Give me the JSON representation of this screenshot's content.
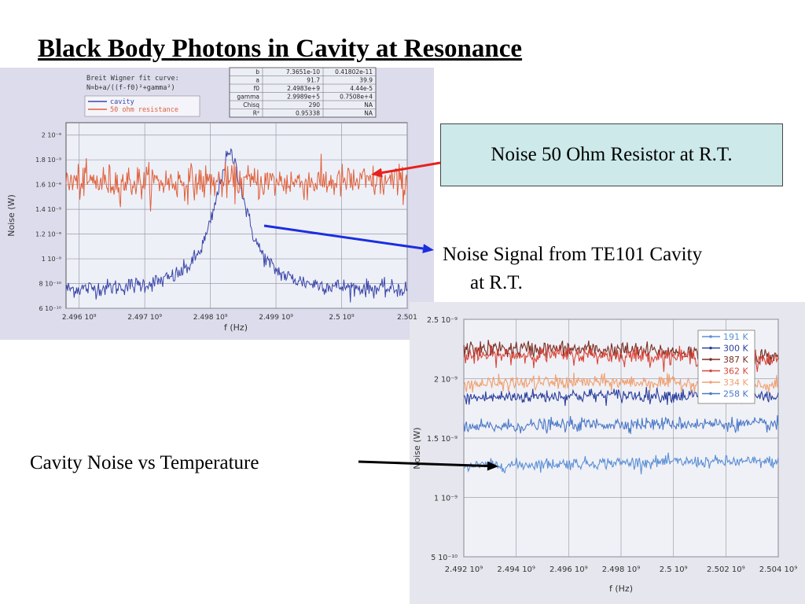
{
  "slide": {
    "title": "Black Body Photons in Cavity at Resonance",
    "callout_resistor": "Noise 50 Ohm Resistor at R.T.",
    "callout_cavity_line1": "Noise Signal from TE101 Cavity",
    "callout_cavity_line2": "at R.T.",
    "callout_temperature": "Cavity Noise vs Temperature"
  },
  "colors": {
    "red_arrow": "#e8201c",
    "blue_arrow": "#1a2ee0",
    "black_arrow": "#000000",
    "callout_bg": "#cde9e9"
  },
  "chart_data": [
    {
      "type": "line",
      "fit_note_line1": "Breit Wigner fit curve:",
      "fit_note_line2": "N=b+a/((f-f0)²+gamma²)",
      "xlabel": "f (Hz)",
      "ylabel": "Noise (W)",
      "xlim": [
        2495800000.0,
        2501000000.0
      ],
      "ylim": [
        6e-10,
        2.1e-09
      ],
      "x_ticks": [
        2496000000.0,
        2497000000.0,
        2498000000.0,
        2499000000.0,
        2500000000.0,
        2501000000.0
      ],
      "x_tick_labels": [
        "2.496 10⁹",
        "2.497 10⁹",
        "2.498 10⁹",
        "2.499 10⁹",
        "2.5 10⁹",
        "2.501"
      ],
      "y_ticks": [
        6e-10,
        8e-10,
        1e-09,
        1.2e-09,
        1.4e-09,
        1.6e-09,
        1.8e-09,
        2e-09
      ],
      "y_tick_labels": [
        "6 10⁻¹⁰",
        "8 10⁻¹⁰",
        "1 10⁻⁹",
        "1.2 10⁻⁹",
        "1.4 10⁻⁹",
        "1.6 10⁻⁹",
        "1.8 10⁻⁹",
        "2 10⁻⁹"
      ],
      "grid": true,
      "legend_position": "top-left",
      "series": [
        {
          "name": "cavity",
          "color": "#3a46a8",
          "model": "breit-wigner",
          "baseline": 7.4e-10,
          "peak": 1.84e-09,
          "center": 2498300000.0,
          "gamma": 299900.0,
          "noise": 3.5e-11
        },
        {
          "name": "50 ohm resistance",
          "color": "#e0603a",
          "model": "flat",
          "baseline": 1.62e-09,
          "noise": 7e-11
        }
      ],
      "fit_table": {
        "headers": [
          "",
          "",
          ""
        ],
        "rows": [
          [
            "b",
            "7.3651e-10",
            "0.41802e-11"
          ],
          [
            "a",
            "91.7",
            "39.9"
          ],
          [
            "f0",
            "2.4983e+9",
            "4.44e-5"
          ],
          [
            "gamma",
            "2.9989e+5",
            "0.7508e+4"
          ],
          [
            "Chisq",
            "290",
            "NA"
          ],
          [
            "R²",
            "0.95338",
            "NA"
          ]
        ]
      }
    },
    {
      "type": "line",
      "xlabel": "f (Hz)",
      "ylabel": "Noise (W)",
      "xlim": [
        2492000000.0,
        2504000000.0
      ],
      "ylim": [
        5e-10,
        2.5e-09
      ],
      "x_ticks": [
        2492000000.0,
        2494000000.0,
        2496000000.0,
        2498000000.0,
        2500000000.0,
        2502000000.0,
        2504000000.0
      ],
      "x_tick_labels": [
        "2.492 10⁹",
        "2.494 10⁹",
        "2.496 10⁹",
        "2.498 10⁹",
        "2.5 10⁹",
        "2.502 10⁹",
        "2.504 10⁹"
      ],
      "y_ticks": [
        5e-10,
        1e-09,
        1.5e-09,
        2e-09,
        2.5e-09
      ],
      "y_tick_labels": [
        "5 10⁻¹⁰",
        "1 10⁻⁹",
        "1.5 10⁻⁹",
        "2 10⁻⁹",
        "2.5 10⁻⁹"
      ],
      "grid": true,
      "legend_position": "top-right",
      "series": [
        {
          "name": "191 K",
          "color": "#5b8fd6",
          "center": 2502150000.0,
          "peak": 1.3e-09,
          "baseline": 7.6e-10,
          "width": 110000000.0,
          "noise": 2.5e-11
        },
        {
          "name": "300 K",
          "color": "#2b3f9e",
          "center": 2498200000.0,
          "peak": 1.86e-09,
          "baseline": 7.6e-10,
          "width": 120000000.0,
          "noise": 3e-11
        },
        {
          "name": "387 K",
          "color": "#7a2e24",
          "center": 2494300000.0,
          "peak": 2.25e-09,
          "baseline": 8.2e-10,
          "width": 130000000.0,
          "noise": 3.5e-11
        },
        {
          "name": "362 K",
          "color": "#d9463a",
          "center": 2495800000.0,
          "peak": 2.2e-09,
          "baseline": 8e-10,
          "width": 130000000.0,
          "noise": 3.5e-11
        },
        {
          "name": "334 K",
          "color": "#f0a070",
          "center": 2497200000.0,
          "peak": 1.97e-09,
          "baseline": 7.8e-10,
          "width": 130000000.0,
          "noise": 3e-11
        },
        {
          "name": "258 K",
          "color": "#4a78c8",
          "center": 2500050000.0,
          "peak": 1.62e-09,
          "baseline": 7.6e-10,
          "width": 120000000.0,
          "noise": 2.8e-11
        }
      ]
    }
  ]
}
